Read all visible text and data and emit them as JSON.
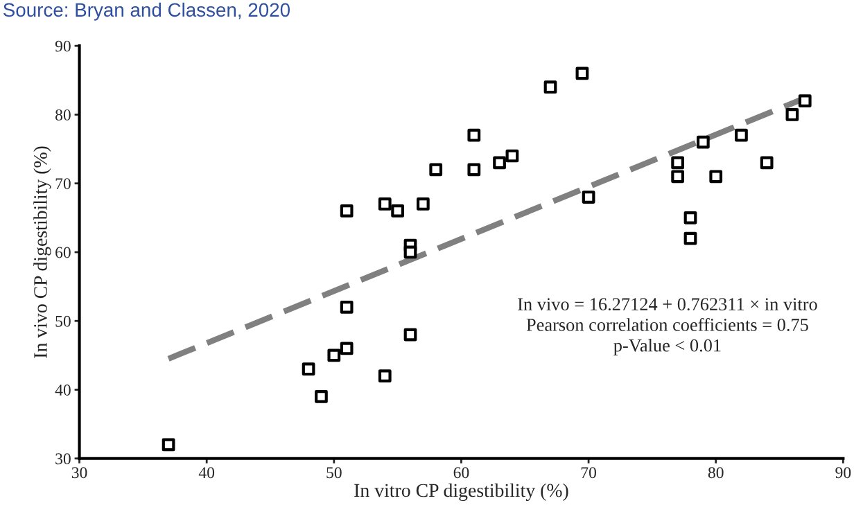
{
  "chart_data": {
    "type": "scatter",
    "xlabel": "In vitro CP digestibility (%)",
    "ylabel": "In vivo CP digestibility (%)",
    "annotations": [
      "Source: Bryan and Classen, 2020",
      "In vivo = 16.27124 + 0.762311 × in vitro",
      "Pearson correlation coefficients = 0.75",
      "p-Value < 0.01"
    ],
    "xlim": [
      30,
      90
    ],
    "ylim": [
      30,
      90
    ],
    "xticks": [
      30,
      40,
      50,
      60,
      70,
      80,
      90
    ],
    "yticks": [
      30,
      40,
      50,
      60,
      70,
      80,
      90
    ],
    "grid": false,
    "legend": false,
    "marker": "square",
    "series": [
      {
        "color": "#000000",
        "x": [
          37,
          48,
          49,
          50,
          51,
          51,
          51,
          54,
          54,
          55,
          56,
          56,
          56,
          57,
          58,
          61,
          61,
          63,
          64,
          67,
          69.5,
          70,
          77,
          77,
          78,
          78,
          79,
          80,
          82,
          84,
          86,
          87
        ],
        "values": [
          32,
          43,
          39,
          45,
          46,
          52,
          66,
          42,
          67,
          66,
          61,
          60,
          48,
          67,
          72,
          77,
          72,
          73,
          74,
          84,
          86,
          68,
          73,
          71,
          65,
          62,
          76,
          71,
          77,
          73,
          80,
          82
        ]
      },
      {
        "type": "line",
        "color": "#808080",
        "line_style": "dashed",
        "marker": "none",
        "x": [
          37,
          87
        ],
        "values": [
          44.5,
          82.4
        ]
      }
    ]
  }
}
